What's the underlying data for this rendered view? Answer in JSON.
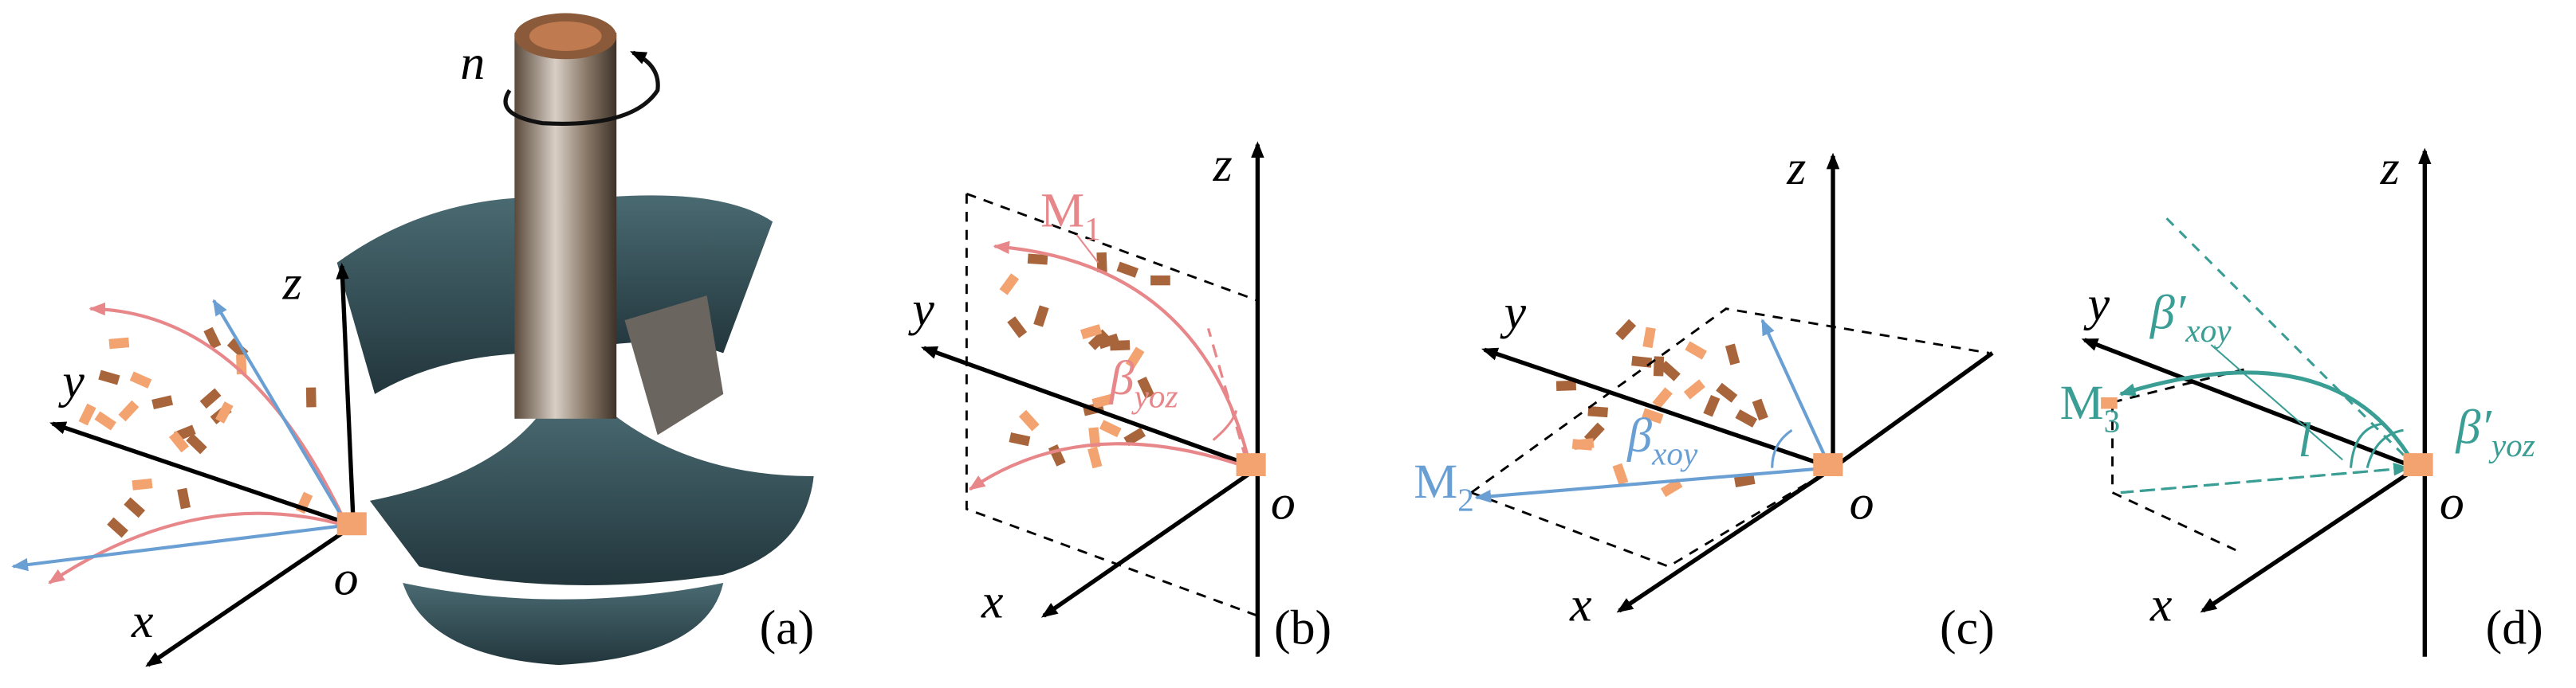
{
  "panels": [
    {
      "label": "(a)",
      "rotation": "n",
      "axes": {
        "x": "x",
        "y": "y",
        "z": "z",
        "origin": "o"
      }
    },
    {
      "label": "(b)",
      "axes": {
        "x": "x",
        "y": "y",
        "z": "z",
        "origin": "o"
      },
      "point": {
        "main": "M",
        "sub": "1"
      },
      "angle": {
        "main": "β",
        "sub": "yoz"
      }
    },
    {
      "label": "(c)",
      "axes": {
        "x": "x",
        "y": "y",
        "z": "z",
        "origin": "o"
      },
      "point": {
        "main": "M",
        "sub": "2"
      },
      "angle": {
        "main": "β",
        "sub": "xoy"
      }
    },
    {
      "label": "(d)",
      "axes": {
        "x": "x",
        "y": "y",
        "z": "z",
        "origin": "o"
      },
      "point": {
        "main": "M",
        "sub": "3"
      },
      "angle": {
        "main": "β′",
        "sub": "xoy"
      },
      "angle2": {
        "main": "β′",
        "sub": "yoz"
      },
      "distance": "l"
    }
  ]
}
